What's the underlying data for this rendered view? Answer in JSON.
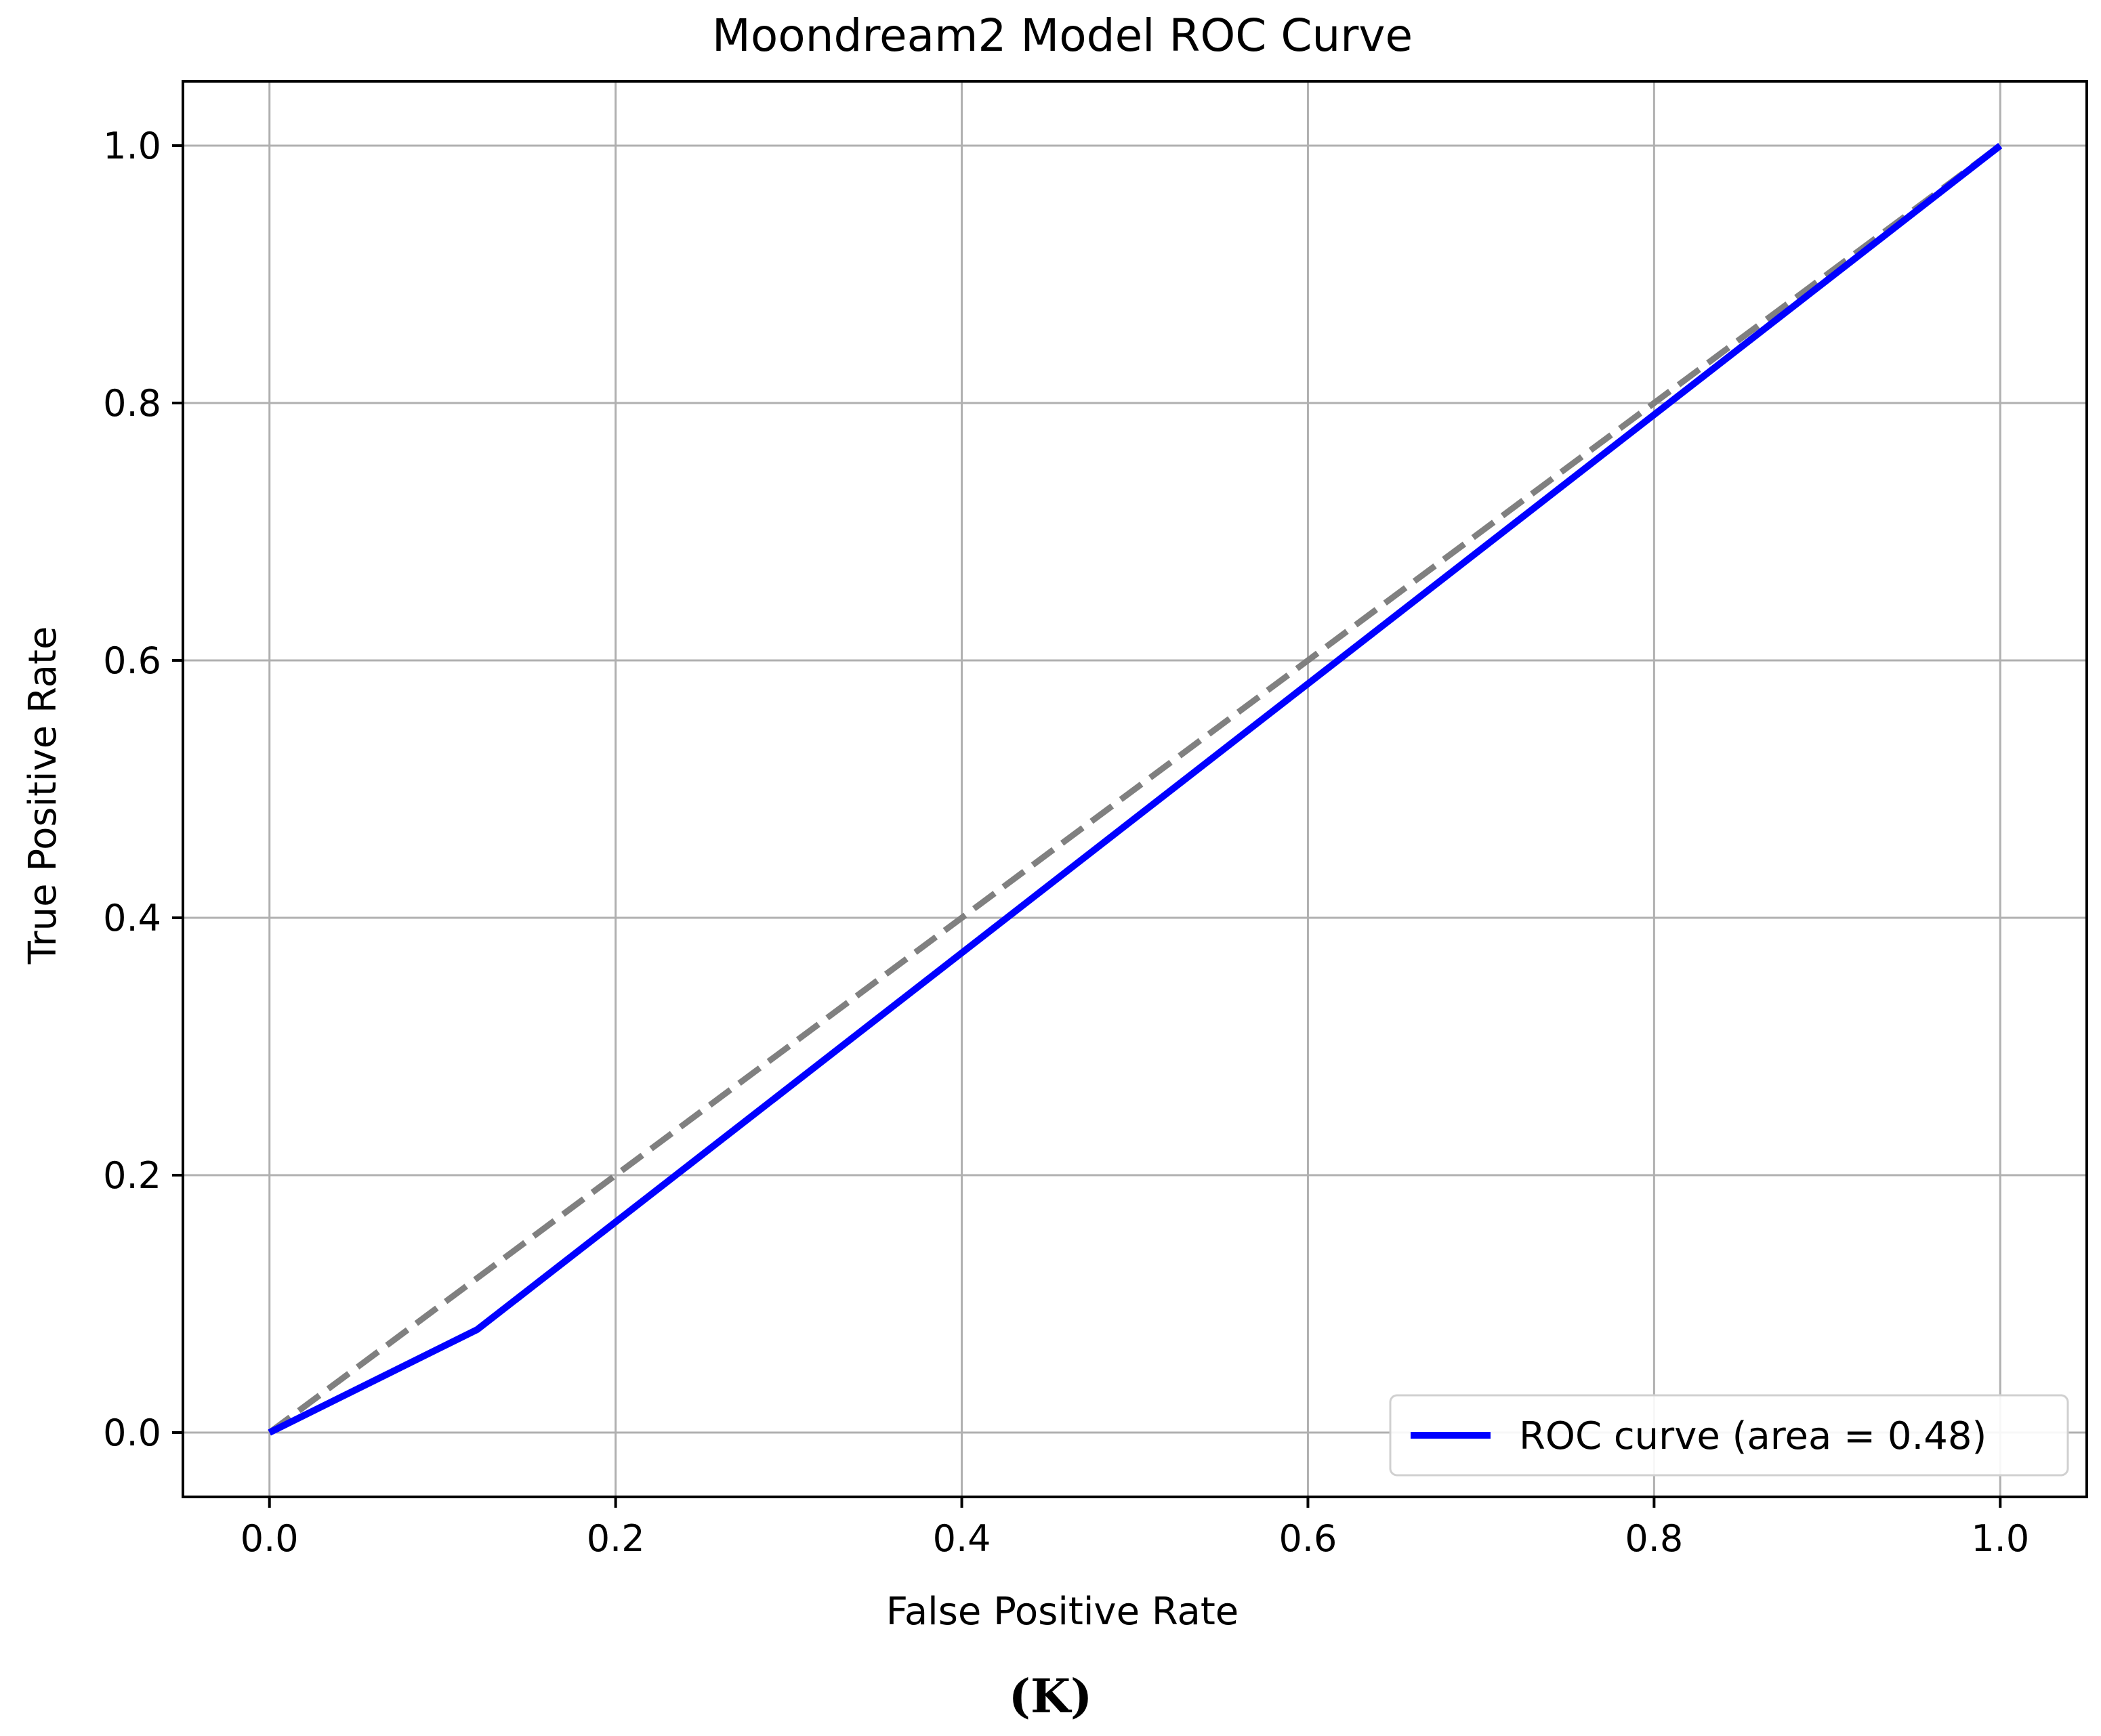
{
  "chart_data": {
    "type": "line",
    "title": "Moondream2 Model ROC Curve",
    "xlabel": "False Positive Rate",
    "ylabel": "True Positive Rate",
    "xlim": [
      -0.05,
      1.05
    ],
    "ylim": [
      -0.05,
      1.05
    ],
    "xticks": [
      0.0,
      0.2,
      0.4,
      0.6,
      0.8,
      1.0
    ],
    "yticks": [
      0.0,
      0.2,
      0.4,
      0.6,
      0.8,
      1.0
    ],
    "xtick_labels": [
      "0.0",
      "0.2",
      "0.4",
      "0.6",
      "0.8",
      "1.0"
    ],
    "ytick_labels": [
      "0.0",
      "0.2",
      "0.4",
      "0.6",
      "0.8",
      "1.0"
    ],
    "grid": true,
    "legend_position": "lower right",
    "series": [
      {
        "name": "ROC curve (area = 0.48)",
        "color": "#0000ff",
        "style": "solid",
        "x": [
          0.0,
          0.12,
          1.0
        ],
        "y": [
          0.0,
          0.08,
          1.0
        ]
      },
      {
        "color": "#808080",
        "style": "dashed",
        "x": [
          0.0,
          1.0
        ],
        "y": [
          0.0,
          1.0
        ]
      }
    ]
  },
  "caption": "(K)"
}
